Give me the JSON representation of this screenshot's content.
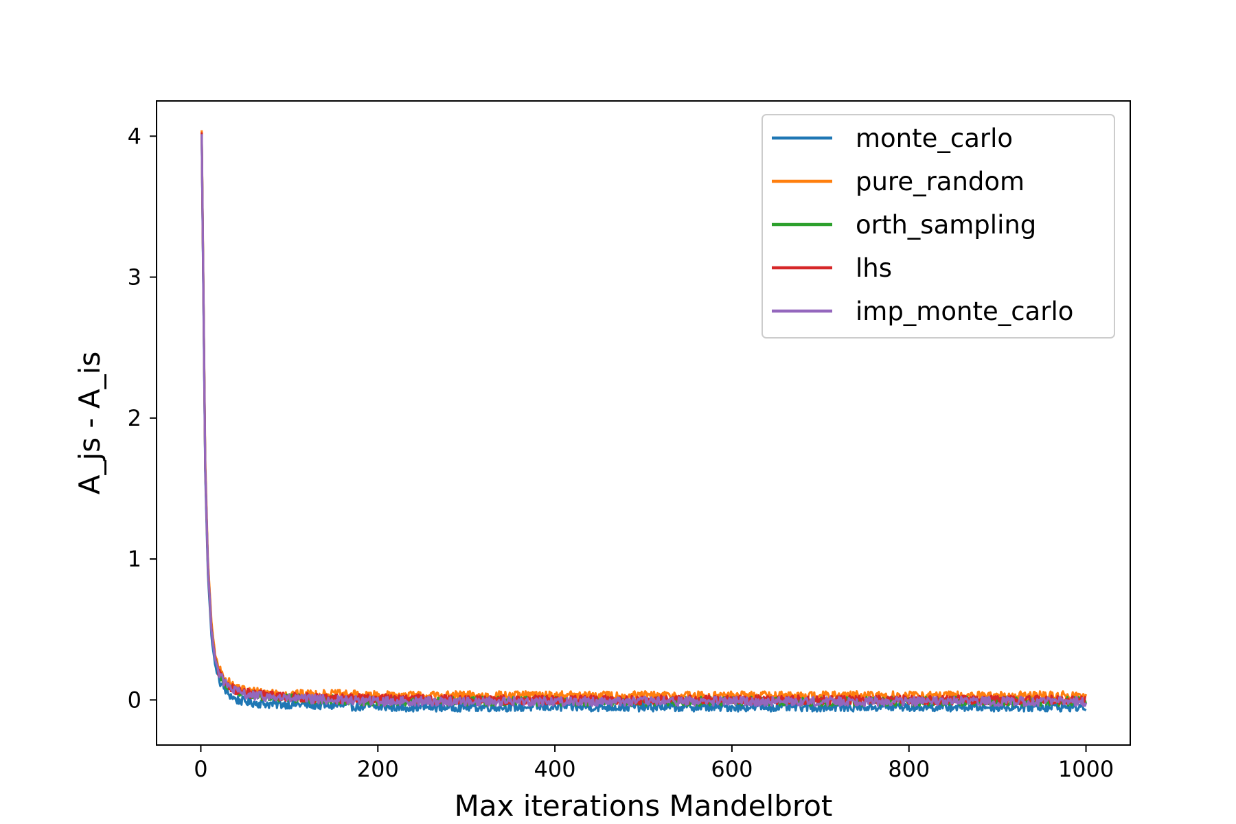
{
  "chart_data": {
    "type": "line",
    "title": "",
    "xlabel": "Max iterations Mandelbrot",
    "ylabel": "A_js - A_is",
    "xlim": [
      -50,
      1050
    ],
    "ylim": [
      -0.32,
      4.25
    ],
    "x_ticks": [
      0,
      200,
      400,
      600,
      800,
      1000
    ],
    "y_ticks": [
      0,
      1,
      2,
      3,
      4
    ],
    "x_tick_labels": [
      "0",
      "200",
      "400",
      "600",
      "800",
      "1000"
    ],
    "y_tick_labels": [
      "0",
      "1",
      "2",
      "3",
      "4"
    ],
    "grid": false,
    "legend_position": "top-right",
    "series": [
      {
        "name": "monte_carlo",
        "color": "#1f77b4",
        "x": [
          1,
          3,
          5,
          8,
          12,
          16,
          20,
          25,
          30,
          40,
          50,
          60,
          80,
          100,
          150,
          200,
          300,
          400,
          500,
          600,
          700,
          800,
          900,
          1000
        ],
        "values": [
          4.0,
          2.8,
          1.6,
          0.9,
          0.45,
          0.25,
          0.15,
          0.09,
          0.05,
          0.0,
          -0.01,
          -0.02,
          -0.03,
          -0.03,
          -0.04,
          -0.05,
          -0.05,
          -0.05,
          -0.05,
          -0.05,
          -0.05,
          -0.05,
          -0.05,
          -0.05
        ]
      },
      {
        "name": "pure_random",
        "color": "#ff7f0e",
        "x": [
          1,
          3,
          5,
          8,
          12,
          16,
          20,
          25,
          30,
          40,
          50,
          60,
          80,
          100,
          150,
          200,
          300,
          400,
          500,
          600,
          700,
          800,
          900,
          1000
        ],
        "values": [
          4.05,
          2.9,
          1.7,
          1.0,
          0.55,
          0.33,
          0.23,
          0.17,
          0.13,
          0.09,
          0.07,
          0.06,
          0.05,
          0.04,
          0.04,
          0.03,
          0.03,
          0.03,
          0.03,
          0.03,
          0.03,
          0.03,
          0.03,
          0.03
        ]
      },
      {
        "name": "orth_sampling",
        "color": "#2ca02c",
        "x": [
          1,
          3,
          5,
          8,
          12,
          16,
          20,
          25,
          30,
          40,
          50,
          60,
          80,
          100,
          150,
          200,
          300,
          400,
          500,
          600,
          700,
          800,
          900,
          1000
        ],
        "values": [
          4.02,
          2.85,
          1.65,
          0.95,
          0.5,
          0.3,
          0.2,
          0.14,
          0.1,
          0.06,
          0.04,
          0.03,
          0.02,
          0.01,
          0.0,
          -0.01,
          -0.01,
          -0.01,
          -0.01,
          -0.01,
          -0.01,
          -0.01,
          -0.01,
          -0.01
        ]
      },
      {
        "name": "lhs",
        "color": "#d62728",
        "x": [
          1,
          3,
          5,
          8,
          12,
          16,
          20,
          25,
          30,
          40,
          50,
          60,
          80,
          100,
          150,
          200,
          300,
          400,
          500,
          600,
          700,
          800,
          900,
          1000
        ],
        "values": [
          4.02,
          2.85,
          1.65,
          0.95,
          0.5,
          0.3,
          0.2,
          0.14,
          0.11,
          0.07,
          0.05,
          0.04,
          0.03,
          0.02,
          0.01,
          0.01,
          0.0,
          0.0,
          0.0,
          0.0,
          0.0,
          0.0,
          0.0,
          0.0
        ]
      },
      {
        "name": "imp_monte_carlo",
        "color": "#9467bd",
        "x": [
          1,
          3,
          5,
          8,
          12,
          16,
          20,
          25,
          30,
          40,
          50,
          60,
          80,
          100,
          150,
          200,
          300,
          400,
          500,
          600,
          700,
          800,
          900,
          1000
        ],
        "values": [
          4.02,
          2.85,
          1.65,
          0.95,
          0.5,
          0.3,
          0.2,
          0.14,
          0.1,
          0.06,
          0.04,
          0.03,
          0.02,
          0.01,
          0.0,
          -0.01,
          -0.01,
          -0.01,
          -0.01,
          -0.01,
          -0.01,
          -0.01,
          -0.01,
          -0.01
        ]
      }
    ]
  }
}
